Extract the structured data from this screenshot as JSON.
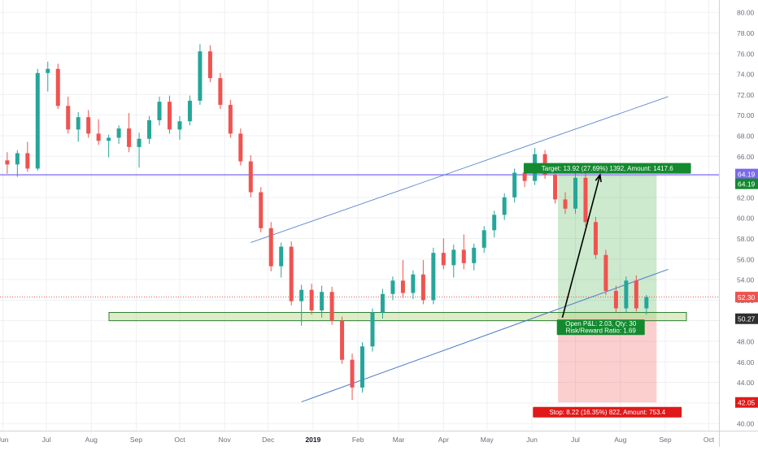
{
  "chart_data": {
    "type": "candlestick",
    "y_axis": {
      "ylim": [
        39.3,
        81.2
      ],
      "ticks": [
        "40.00",
        "42.00",
        "44.00",
        "46.00",
        "48.00",
        "50.00",
        "52.00",
        "54.00",
        "56.00",
        "58.00",
        "60.00",
        "62.00",
        "64.00",
        "66.00",
        "68.00",
        "70.00",
        "72.00",
        "74.00",
        "76.00",
        "78.00",
        "80.00"
      ],
      "grid": true
    },
    "x_axis": {
      "ticks": [
        "Jun",
        "Jul",
        "Aug",
        "Sep",
        "Oct",
        "Nov",
        "Dec",
        "2019",
        "Feb",
        "Mar",
        "Apr",
        "May",
        "Jun",
        "Jul",
        "Aug",
        "Sep",
        "Oct"
      ]
    },
    "colors": {
      "up": "#26a69a",
      "down": "#ef5350",
      "level_line": "#7b68ee",
      "channel": "#4a78c8",
      "last_price": "#ef5350"
    },
    "candles": [
      {
        "x": "2018-05-28",
        "o": 68.2,
        "h": 68.9,
        "l": 65.1,
        "c": 65.6
      },
      {
        "x": "2018-06-04",
        "o": 65.6,
        "h": 66.4,
        "l": 64.3,
        "c": 65.2
      },
      {
        "x": "2018-06-11",
        "o": 65.2,
        "h": 66.6,
        "l": 64.0,
        "c": 66.3
      },
      {
        "x": "2018-06-18",
        "o": 66.3,
        "h": 67.4,
        "l": 64.5,
        "c": 64.8
      },
      {
        "x": "2018-06-25",
        "o": 64.8,
        "h": 74.5,
        "l": 64.6,
        "c": 74.1
      },
      {
        "x": "2018-07-02",
        "o": 74.1,
        "h": 75.2,
        "l": 72.3,
        "c": 74.5
      },
      {
        "x": "2018-07-09",
        "o": 74.5,
        "h": 75.0,
        "l": 70.6,
        "c": 70.9
      },
      {
        "x": "2018-07-16",
        "o": 70.9,
        "h": 71.8,
        "l": 68.2,
        "c": 68.6
      },
      {
        "x": "2018-07-23",
        "o": 68.6,
        "h": 70.3,
        "l": 67.4,
        "c": 69.8
      },
      {
        "x": "2018-07-30",
        "o": 69.8,
        "h": 70.5,
        "l": 67.8,
        "c": 68.2
      },
      {
        "x": "2018-08-06",
        "o": 68.2,
        "h": 69.6,
        "l": 67.1,
        "c": 67.5
      },
      {
        "x": "2018-08-13",
        "o": 67.5,
        "h": 68.1,
        "l": 65.9,
        "c": 67.8
      },
      {
        "x": "2018-08-20",
        "o": 67.8,
        "h": 69.0,
        "l": 67.2,
        "c": 68.7
      },
      {
        "x": "2018-08-27",
        "o": 68.7,
        "h": 70.2,
        "l": 66.4,
        "c": 66.9
      },
      {
        "x": "2018-09-03",
        "o": 66.9,
        "h": 68.3,
        "l": 64.9,
        "c": 67.7
      },
      {
        "x": "2018-09-10",
        "o": 67.7,
        "h": 69.9,
        "l": 67.2,
        "c": 69.5
      },
      {
        "x": "2018-09-17",
        "o": 69.5,
        "h": 71.8,
        "l": 69.0,
        "c": 71.3
      },
      {
        "x": "2018-09-24",
        "o": 71.3,
        "h": 71.9,
        "l": 68.2,
        "c": 68.6
      },
      {
        "x": "2018-10-01",
        "o": 68.6,
        "h": 69.9,
        "l": 67.6,
        "c": 69.4
      },
      {
        "x": "2018-10-08",
        "o": 69.4,
        "h": 71.9,
        "l": 69.0,
        "c": 71.4
      },
      {
        "x": "2018-10-15",
        "o": 71.4,
        "h": 76.9,
        "l": 71.0,
        "c": 76.2
      },
      {
        "x": "2018-10-22",
        "o": 76.2,
        "h": 76.8,
        "l": 73.2,
        "c": 73.6
      },
      {
        "x": "2018-10-29",
        "o": 73.6,
        "h": 74.1,
        "l": 70.6,
        "c": 71.0
      },
      {
        "x": "2018-11-05",
        "o": 71.0,
        "h": 71.5,
        "l": 67.8,
        "c": 68.2
      },
      {
        "x": "2018-11-12",
        "o": 68.2,
        "h": 68.7,
        "l": 65.1,
        "c": 65.5
      },
      {
        "x": "2018-11-19",
        "o": 65.5,
        "h": 66.1,
        "l": 62.0,
        "c": 62.5
      },
      {
        "x": "2018-11-26",
        "o": 62.5,
        "h": 63.0,
        "l": 58.6,
        "c": 59.0
      },
      {
        "x": "2018-12-03",
        "o": 59.0,
        "h": 59.6,
        "l": 54.8,
        "c": 55.3
      },
      {
        "x": "2018-12-10",
        "o": 55.3,
        "h": 57.6,
        "l": 54.2,
        "c": 57.2
      },
      {
        "x": "2018-12-17",
        "o": 57.2,
        "h": 57.7,
        "l": 51.5,
        "c": 51.9
      },
      {
        "x": "2018-12-24",
        "o": 51.9,
        "h": 53.5,
        "l": 49.5,
        "c": 53.0
      },
      {
        "x": "2018-12-31",
        "o": 53.0,
        "h": 53.6,
        "l": 50.6,
        "c": 51.0
      },
      {
        "x": "2019-01-07",
        "o": 51.0,
        "h": 53.4,
        "l": 50.3,
        "c": 52.8
      },
      {
        "x": "2019-01-14",
        "o": 52.8,
        "h": 53.3,
        "l": 49.6,
        "c": 50.0
      },
      {
        "x": "2019-01-21",
        "o": 50.0,
        "h": 50.4,
        "l": 45.8,
        "c": 46.2
      },
      {
        "x": "2019-01-28",
        "o": 46.2,
        "h": 46.8,
        "l": 42.3,
        "c": 43.5
      },
      {
        "x": "2019-02-04",
        "o": 43.5,
        "h": 47.9,
        "l": 43.0,
        "c": 47.5
      },
      {
        "x": "2019-02-11",
        "o": 47.5,
        "h": 51.2,
        "l": 47.0,
        "c": 50.8
      },
      {
        "x": "2019-02-18",
        "o": 50.8,
        "h": 53.1,
        "l": 50.2,
        "c": 52.6
      },
      {
        "x": "2019-02-25",
        "o": 52.6,
        "h": 54.3,
        "l": 52.0,
        "c": 53.9
      },
      {
        "x": "2019-03-04",
        "o": 53.9,
        "h": 55.9,
        "l": 52.2,
        "c": 52.7
      },
      {
        "x": "2019-03-11",
        "o": 52.7,
        "h": 54.9,
        "l": 52.1,
        "c": 54.5
      },
      {
        "x": "2019-03-18",
        "o": 54.5,
        "h": 55.9,
        "l": 51.6,
        "c": 52.0
      },
      {
        "x": "2019-03-25",
        "o": 52.0,
        "h": 57.1,
        "l": 51.6,
        "c": 56.6
      },
      {
        "x": "2019-04-01",
        "o": 56.6,
        "h": 58.0,
        "l": 55.0,
        "c": 55.4
      },
      {
        "x": "2019-04-08",
        "o": 55.4,
        "h": 57.4,
        "l": 54.2,
        "c": 56.9
      },
      {
        "x": "2019-04-15",
        "o": 56.9,
        "h": 58.4,
        "l": 55.0,
        "c": 55.6
      },
      {
        "x": "2019-04-22",
        "o": 55.6,
        "h": 57.5,
        "l": 54.9,
        "c": 57.1
      },
      {
        "x": "2019-04-29",
        "o": 57.1,
        "h": 59.2,
        "l": 56.6,
        "c": 58.8
      },
      {
        "x": "2019-05-06",
        "o": 58.8,
        "h": 60.7,
        "l": 58.1,
        "c": 60.3
      },
      {
        "x": "2019-05-13",
        "o": 60.3,
        "h": 62.4,
        "l": 59.8,
        "c": 62.0
      },
      {
        "x": "2019-05-20",
        "o": 62.0,
        "h": 64.8,
        "l": 61.5,
        "c": 64.4
      },
      {
        "x": "2019-05-27",
        "o": 64.4,
        "h": 65.0,
        "l": 63.0,
        "c": 63.6
      },
      {
        "x": "2019-06-03",
        "o": 63.6,
        "h": 66.8,
        "l": 63.2,
        "c": 66.2
      },
      {
        "x": "2019-06-10",
        "o": 66.2,
        "h": 66.6,
        "l": 63.8,
        "c": 64.2
      },
      {
        "x": "2019-06-17",
        "o": 64.2,
        "h": 64.7,
        "l": 61.4,
        "c": 61.8
      },
      {
        "x": "2019-06-24",
        "o": 61.8,
        "h": 62.5,
        "l": 60.4,
        "c": 60.9
      },
      {
        "x": "2019-07-01",
        "o": 60.9,
        "h": 64.4,
        "l": 60.4,
        "c": 63.9
      },
      {
        "x": "2019-07-08",
        "o": 63.9,
        "h": 64.4,
        "l": 59.2,
        "c": 59.6
      },
      {
        "x": "2019-07-15",
        "o": 59.6,
        "h": 60.1,
        "l": 56.0,
        "c": 56.4
      },
      {
        "x": "2019-07-22",
        "o": 56.4,
        "h": 56.9,
        "l": 52.5,
        "c": 52.9
      },
      {
        "x": "2019-07-29",
        "o": 52.9,
        "h": 53.4,
        "l": 50.8,
        "c": 51.2
      },
      {
        "x": "2019-08-05",
        "o": 51.2,
        "h": 54.3,
        "l": 50.8,
        "c": 53.9
      },
      {
        "x": "2019-08-12",
        "o": 53.9,
        "h": 54.4,
        "l": 50.9,
        "c": 51.2
      },
      {
        "x": "2019-08-19",
        "o": 51.2,
        "h": 52.5,
        "l": 50.6,
        "c": 52.3
      }
    ],
    "horizontal_lines": [
      {
        "name": "resistance",
        "y": 64.19,
        "label": "64.19"
      },
      {
        "name": "last-price",
        "y": 52.3,
        "label": "52.30"
      }
    ],
    "support_zone": {
      "y_low": 50.0,
      "y_high": 50.8
    },
    "channel_lines": [
      {
        "name": "upper",
        "x0": "2018-11-19",
        "y0": 57.6,
        "x1": "2019-09-03",
        "y1": 71.8
      },
      {
        "name": "lower",
        "x0": "2018-12-24",
        "y0": 42.1,
        "x1": "2019-09-03",
        "y1": 55.0
      }
    ],
    "projection_arrow": {
      "x0": "2019-06-22",
      "y0": 50.3,
      "x1": "2019-07-18",
      "y1": 64.19
    },
    "position": {
      "start": "2019-06-19",
      "end": "2019-08-26",
      "entry": 50.27,
      "target": 64.19,
      "stop": 42.05,
      "target_label": "Target: 13.92 (27.69%) 1392, Amount: 1417.6",
      "stop_label": "Stop: 8.22 (16.35%) 822, Amount: 753.4",
      "pnl_label": "Open P&L: 2.03, Qty: 30",
      "rr_label": "Risk/Reward Ratio: 1.69"
    },
    "price_badges": [
      {
        "name": "level",
        "value": "64.19",
        "bg": "#7b68ee",
        "fg": "#ffffff"
      },
      {
        "name": "target",
        "value": "64.19",
        "bg": "#138a2f",
        "fg": "#ffffff"
      },
      {
        "name": "last",
        "value": "52.30",
        "bg": "#ef5350",
        "fg": "#ffffff"
      },
      {
        "name": "entry",
        "value": "50.27",
        "bg": "#2f2f2f",
        "fg": "#ffffff"
      },
      {
        "name": "stop",
        "value": "42.05",
        "bg": "#e01919",
        "fg": "#ffffff"
      }
    ]
  }
}
